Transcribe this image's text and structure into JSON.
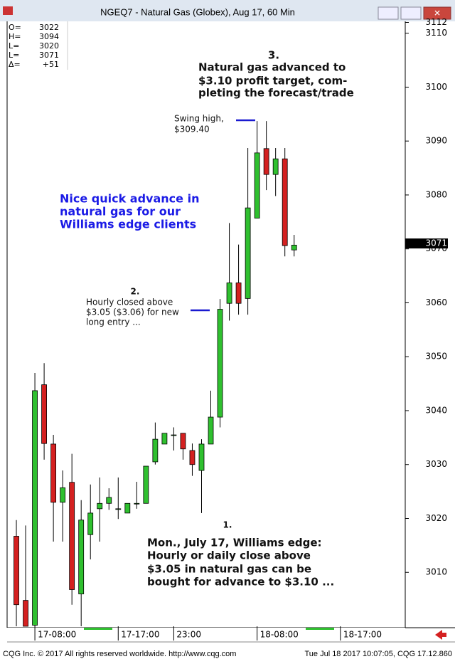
{
  "chart_data": {
    "type": "candlestick",
    "title": "NGEQ7 - Natural Gas (Globex), Aug 17, 60 Min",
    "x": [
      0,
      1,
      2,
      3,
      4,
      5,
      6,
      7,
      8,
      9,
      10,
      11,
      12,
      13,
      14,
      15,
      16,
      17,
      18,
      19,
      20,
      21,
      22,
      23,
      24,
      25,
      26,
      27,
      28,
      29,
      30
    ],
    "open": [
      3016.7,
      3004.8,
      3000.2,
      3044.8,
      3033.8,
      3023.0,
      3026.7,
      3006.0,
      3017.0,
      3021.8,
      3022.8,
      3021.8,
      3021.0,
      3022.8,
      3022.8,
      3030.5,
      3033.8,
      3035.5,
      3035.8,
      3032.6,
      3028.9,
      3033.8,
      3038.8,
      3059.9,
      3063.7,
      3060.8,
      3075.7,
      3088.6,
      3083.8,
      3086.7,
      3069.8
    ],
    "high": [
      3019.7,
      3018.7,
      3047.0,
      3048.8,
      3035.5,
      3028.9,
      3032.0,
      3023.4,
      3026.3,
      3027.6,
      3025.6,
      3027.6,
      3022.8,
      3026.8,
      3029.7,
      3037.8,
      3035.8,
      3036.9,
      3035.8,
      3033.9,
      3034.7,
      3043.7,
      3060.7,
      3074.8,
      3070.8,
      3088.7,
      3093.7,
      3093.7,
      3088.7,
      3088.7,
      3072.6
    ],
    "low": [
      3000.0,
      3000.0,
      3000.0,
      3030.9,
      3015.7,
      3015.7,
      3004.0,
      3000.0,
      3012.4,
      3015.7,
      3021.6,
      3019.9,
      3021.0,
      3021.8,
      3022.8,
      3030.0,
      3033.8,
      3032.6,
      3030.9,
      3027.9,
      3021.0,
      3033.8,
      3036.9,
      3056.7,
      3057.8,
      3057.8,
      3075.7,
      3080.9,
      3079.8,
      3068.6,
      3068.6
    ],
    "close": [
      3004.0,
      3000.0,
      3043.7,
      3033.9,
      3023.0,
      3025.7,
      3006.8,
      3019.7,
      3021.0,
      3022.8,
      3023.9,
      3021.8,
      3022.8,
      3022.8,
      3029.7,
      3034.7,
      3035.8,
      3035.5,
      3032.9,
      3030.0,
      3033.8,
      3038.8,
      3058.8,
      3063.7,
      3059.9,
      3077.6,
      3087.8,
      3083.8,
      3086.7,
      3070.6,
      3070.7
    ],
    "up_color": "#2fc02f",
    "down_color": "#d42020",
    "xlim": [
      -1,
      42
    ],
    "xticks": [
      {
        "value": 2,
        "label": "17-08:00"
      },
      {
        "value": 11,
        "label": "17-17:00"
      },
      {
        "value": 17,
        "label": "23:00"
      },
      {
        "value": 26,
        "label": "18-08:00"
      },
      {
        "value": 35,
        "label": "18-17:00"
      }
    ],
    "ylim": [
      3000,
      3112.2
    ],
    "yticks": [
      3010,
      3020,
      3030,
      3040,
      3050,
      3060,
      3070,
      3080,
      3090,
      3100,
      3110,
      3112
    ],
    "last": 3071,
    "info": [
      {
        "label": "O=",
        "value": "3022"
      },
      {
        "label": "H=",
        "value": "3094"
      },
      {
        "label": "L=",
        "value": "3020"
      },
      {
        "label": "L=",
        "value": "3071"
      },
      {
        "label": "Δ=",
        "value": "+51"
      }
    ],
    "annotations": [
      {
        "number": "3.",
        "lines": [
          "Natural gas advanced to",
          "$3.10 profit target, com-",
          "pleting the forecast/trade"
        ]
      },
      {
        "lines": [
          "Swing high,",
          "$309.40"
        ]
      },
      {
        "lines": [
          "Nice quick advance in",
          "natural gas for our",
          "Williams edge clients"
        ]
      },
      {
        "number": "2.",
        "lines": [
          "Hourly closed above",
          "$3.05 ($3.06) for new",
          "long entry ..."
        ]
      },
      {
        "number": "1.",
        "lines": [
          "Mon., July 17, Williams edge:",
          "Hourly or daily close above",
          "$3.05 in natural gas can be",
          "bought for advance to $3.10 ..."
        ]
      }
    ],
    "footer_left": "CQG Inc. © 2017 All rights reserved worldwide. http://www.cqg.com",
    "footer_right": "Tue Jul 18 2017 10:07:05, CQG 17.12.860"
  }
}
